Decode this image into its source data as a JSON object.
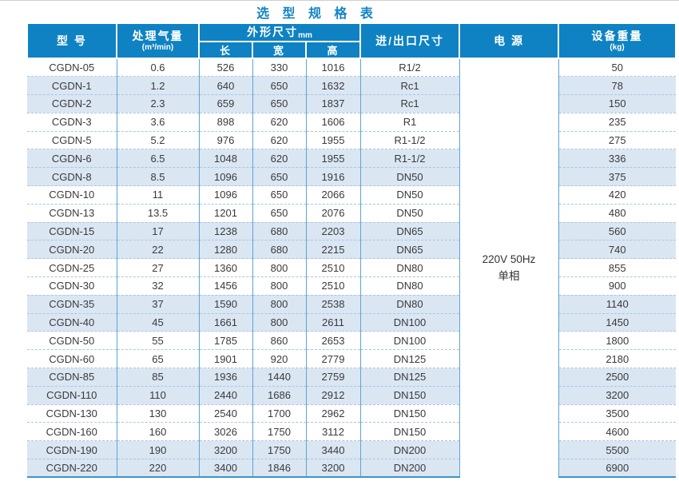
{
  "title": "选 型 规 格 表",
  "header": {
    "model": "型  号",
    "capacity_line1": "处理气量",
    "capacity_line2": "(m³/min)",
    "dimensions": "外形尺寸",
    "dimensions_unit": "mm",
    "length": "长",
    "width": "宽",
    "height": "高",
    "port": "进/出口尺寸",
    "power": "电  源",
    "weight_line1": "设备重量",
    "weight_line2": "(kg)"
  },
  "power_cell": {
    "line1": "220V 50Hz",
    "line2": "单相"
  },
  "colors": {
    "header_bg": "#0E82C2",
    "title_text": "#1283C5",
    "stripe_row": "#DBE6F3",
    "grid_line": "#5CA4D5",
    "dashed_line": "#AAC6E0",
    "bottom_line": "#3F93CA",
    "body_text": "#3A3A3A"
  },
  "rows": [
    {
      "model": "CGDN-05",
      "capacity": "0.6",
      "length": "526",
      "width": "330",
      "height": "1016",
      "port": "R1/2",
      "weight": "50"
    },
    {
      "model": "CGDN-1",
      "capacity": "1.2",
      "length": "640",
      "width": "650",
      "height": "1632",
      "port": "Rc1",
      "weight": "78"
    },
    {
      "model": "CGDN-2",
      "capacity": "2.3",
      "length": "659",
      "width": "650",
      "height": "1837",
      "port": "Rc1",
      "weight": "150"
    },
    {
      "model": "CGDN-3",
      "capacity": "3.6",
      "length": "898",
      "width": "620",
      "height": "1606",
      "port": "R1",
      "weight": "235"
    },
    {
      "model": "CGDN-5",
      "capacity": "5.2",
      "length": "976",
      "width": "620",
      "height": "1955",
      "port": "R1-1/2",
      "weight": "275"
    },
    {
      "model": "CGDN-6",
      "capacity": "6.5",
      "length": "1048",
      "width": "620",
      "height": "1955",
      "port": "R1-1/2",
      "weight": "336"
    },
    {
      "model": "CGDN-8",
      "capacity": "8.5",
      "length": "1096",
      "width": "650",
      "height": "1916",
      "port": "DN50",
      "weight": "375"
    },
    {
      "model": "CGDN-10",
      "capacity": "11",
      "length": "1096",
      "width": "650",
      "height": "2066",
      "port": "DN50",
      "weight": "420"
    },
    {
      "model": "CGDN-13",
      "capacity": "13.5",
      "length": "1201",
      "width": "650",
      "height": "2076",
      "port": "DN50",
      "weight": "480"
    },
    {
      "model": "CGDN-15",
      "capacity": "17",
      "length": "1238",
      "width": "680",
      "height": "2203",
      "port": "DN65",
      "weight": "560"
    },
    {
      "model": "CGDN-20",
      "capacity": "22",
      "length": "1280",
      "width": "680",
      "height": "2215",
      "port": "DN65",
      "weight": "740"
    },
    {
      "model": "CGDN-25",
      "capacity": "27",
      "length": "1360",
      "width": "800",
      "height": "2510",
      "port": "DN80",
      "weight": "855"
    },
    {
      "model": "CGDN-30",
      "capacity": "32",
      "length": "1456",
      "width": "800",
      "height": "2510",
      "port": "DN80",
      "weight": "900"
    },
    {
      "model": "CGDN-35",
      "capacity": "37",
      "length": "1590",
      "width": "800",
      "height": "2538",
      "port": "DN80",
      "weight": "1140"
    },
    {
      "model": "CGDN-40",
      "capacity": "45",
      "length": "1661",
      "width": "800",
      "height": "2611",
      "port": "DN100",
      "weight": "1450"
    },
    {
      "model": "CGDN-50",
      "capacity": "55",
      "length": "1785",
      "width": "860",
      "height": "2653",
      "port": "DN100",
      "weight": "1800"
    },
    {
      "model": "CGDN-60",
      "capacity": "65",
      "length": "1901",
      "width": "920",
      "height": "2779",
      "port": "DN125",
      "weight": "2180"
    },
    {
      "model": "CGDN-85",
      "capacity": "85",
      "length": "1936",
      "width": "1440",
      "height": "2759",
      "port": "DN125",
      "weight": "2500"
    },
    {
      "model": "CGDN-110",
      "capacity": "110",
      "length": "2440",
      "width": "1686",
      "height": "2912",
      "port": "DN150",
      "weight": "3200"
    },
    {
      "model": "CGDN-130",
      "capacity": "130",
      "length": "2540",
      "width": "1700",
      "height": "2962",
      "port": "DN150",
      "weight": "3500"
    },
    {
      "model": "CGDN-160",
      "capacity": "160",
      "length": "3026",
      "width": "1750",
      "height": "3112",
      "port": "DN150",
      "weight": "4600"
    },
    {
      "model": "CGDN-190",
      "capacity": "190",
      "length": "3200",
      "width": "1750",
      "height": "3440",
      "port": "DN200",
      "weight": "5500"
    },
    {
      "model": "CGDN-220",
      "capacity": "220",
      "length": "3400",
      "width": "1846",
      "height": "3200",
      "port": "DN200",
      "weight": "6900"
    }
  ]
}
